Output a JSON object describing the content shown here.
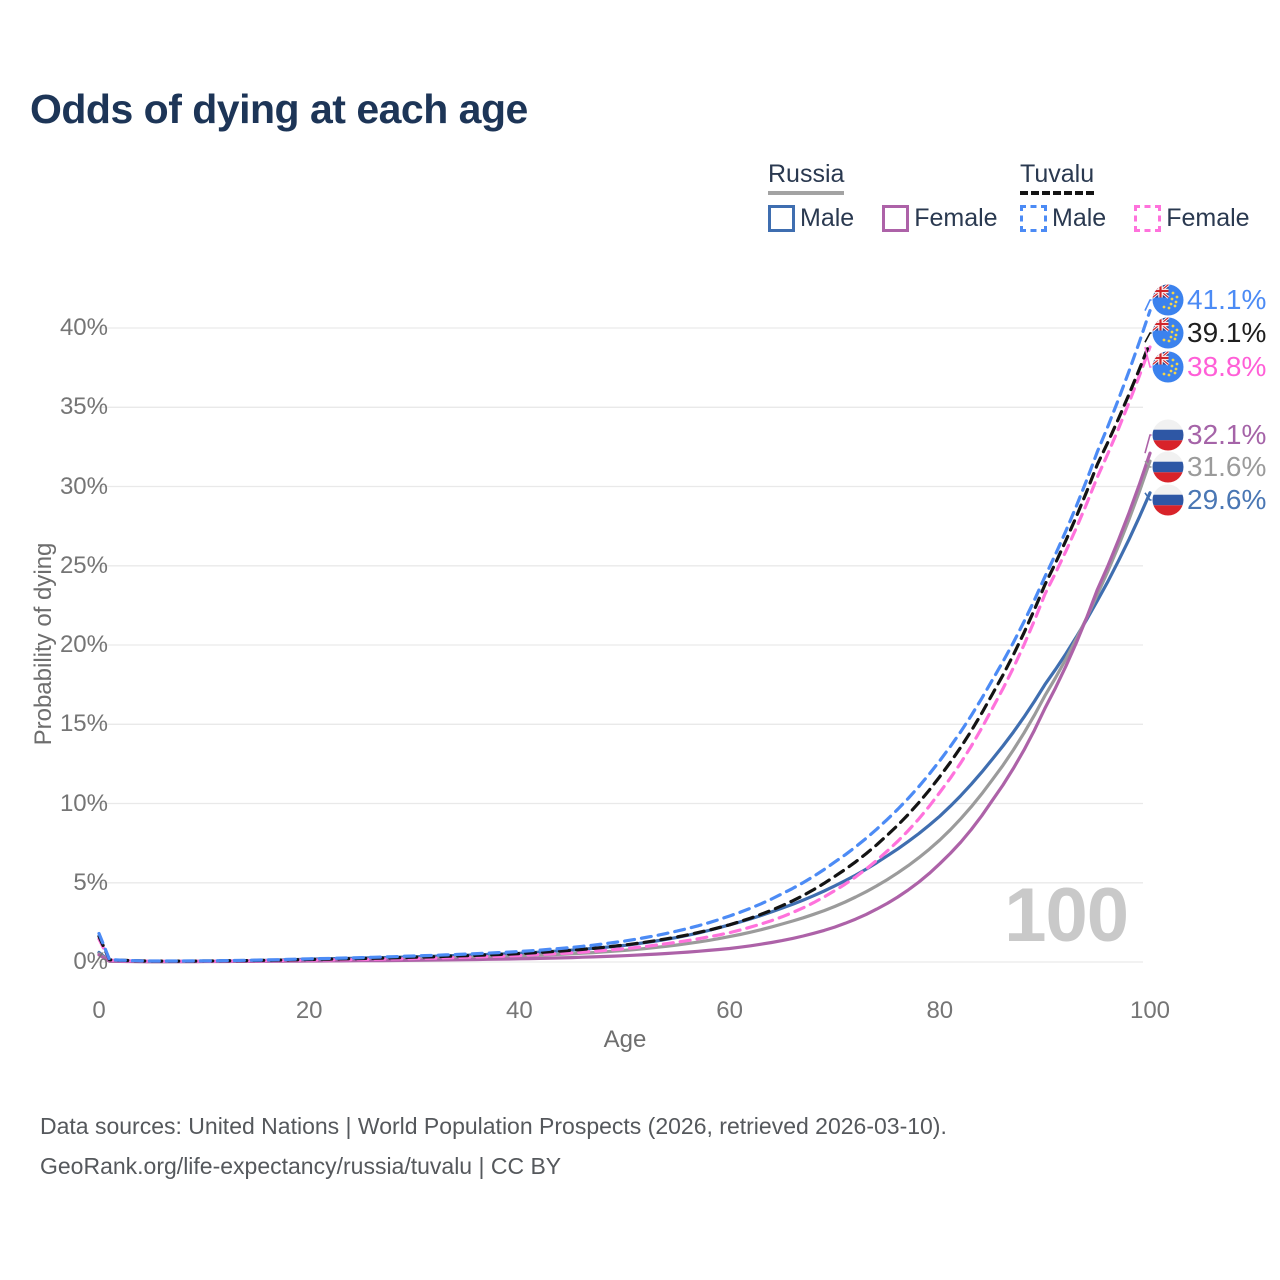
{
  "title": "Odds of dying at each age",
  "legend": {
    "groups": [
      {
        "name": "Russia",
        "rule_style": "solid",
        "rule_color": "#a3a3a3",
        "items": [
          {
            "label": "Male",
            "color": "#3f6eb0",
            "dash": false
          },
          {
            "label": "Female",
            "color": "#ad62a8",
            "dash": false
          }
        ]
      },
      {
        "name": "Tuvalu",
        "rule_style": "dashed",
        "rule_color": "#141414",
        "items": [
          {
            "label": "Male",
            "color": "#4c8bf5",
            "dash": true
          },
          {
            "label": "Female",
            "color": "#ff72dc",
            "dash": true
          }
        ]
      }
    ]
  },
  "chart_data": {
    "type": "line",
    "title": "Odds of dying at each age",
    "x_label": "Age",
    "y_label": "Probability of dying",
    "xlim": [
      0,
      100
    ],
    "ylim": [
      0,
      42
    ],
    "grid": "horizontal",
    "legend_position": "top-right",
    "age_marker": "100",
    "x_ticks": [
      {
        "value": 0,
        "label": "0"
      },
      {
        "value": 20,
        "label": "20"
      },
      {
        "value": 40,
        "label": "40"
      },
      {
        "value": 60,
        "label": "60"
      },
      {
        "value": 80,
        "label": "80"
      },
      {
        "value": 100,
        "label": "100"
      }
    ],
    "y_ticks": [
      {
        "value": 0,
        "label": "0%"
      },
      {
        "value": 5,
        "label": "5%"
      },
      {
        "value": 10,
        "label": "10%"
      },
      {
        "value": 15,
        "label": "15%"
      },
      {
        "value": 20,
        "label": "20%"
      },
      {
        "value": 25,
        "label": "25%"
      },
      {
        "value": 30,
        "label": "30%"
      },
      {
        "value": 35,
        "label": "35%"
      },
      {
        "value": 40,
        "label": "40%"
      }
    ],
    "ages": [
      0,
      1,
      5,
      10,
      15,
      20,
      25,
      30,
      35,
      40,
      45,
      50,
      55,
      60,
      65,
      70,
      75,
      80,
      85,
      90,
      95,
      100
    ],
    "series": [
      {
        "id": "tuvalu-male",
        "country": "Tuvalu",
        "sex": "Male",
        "flag": "tuvalu",
        "color": "#4c8bf5",
        "dash": true,
        "end_label": "41.1%",
        "label_color": "#4c8bf5",
        "values": [
          1.8,
          0.15,
          0.06,
          0.07,
          0.12,
          0.2,
          0.28,
          0.38,
          0.5,
          0.66,
          0.92,
          1.32,
          1.95,
          2.9,
          4.3,
          6.3,
          9.0,
          12.7,
          17.8,
          24.3,
          32.2,
          41.1
        ]
      },
      {
        "id": "tuvalu-both",
        "country": "Tuvalu",
        "sex": "Both sexes",
        "flag": "tuvalu",
        "color": "#141414",
        "dash": true,
        "end_label": "39.1%",
        "label_color": "#1f1f1f",
        "values": [
          1.62,
          0.14,
          0.055,
          0.06,
          0.1,
          0.16,
          0.22,
          0.3,
          0.4,
          0.53,
          0.74,
          1.07,
          1.58,
          2.35,
          3.55,
          5.4,
          8.0,
          11.7,
          16.9,
          23.8,
          31.4,
          39.1
        ]
      },
      {
        "id": "tuvalu-female",
        "country": "Tuvalu",
        "sex": "Female",
        "flag": "tuvalu",
        "color": "#ff72dc",
        "dash": true,
        "end_label": "38.8%",
        "label_color": "#ff5fd7",
        "values": [
          1.45,
          0.12,
          0.05,
          0.05,
          0.08,
          0.12,
          0.16,
          0.22,
          0.3,
          0.41,
          0.58,
          0.84,
          1.25,
          1.85,
          2.85,
          4.5,
          7.0,
          10.7,
          16.0,
          23.2,
          30.6,
          38.8
        ]
      },
      {
        "id": "russia-female",
        "country": "Russia",
        "sex": "Female",
        "flag": "russia",
        "color": "#ad62a8",
        "dash": false,
        "end_label": "32.1%",
        "label_color": "#a564a8",
        "values": [
          0.45,
          0.05,
          0.02,
          0.03,
          0.04,
          0.06,
          0.08,
          0.11,
          0.15,
          0.2,
          0.28,
          0.4,
          0.58,
          0.85,
          1.35,
          2.2,
          3.7,
          6.2,
          10.2,
          16.0,
          23.5,
          32.1
        ]
      },
      {
        "id": "russia-both",
        "country": "Russia",
        "sex": "Both sexes",
        "flag": "russia",
        "color": "#9b9b9b",
        "dash": false,
        "end_label": "31.6%",
        "label_color": "#9b9b9b",
        "values": [
          0.52,
          0.055,
          0.025,
          0.035,
          0.07,
          0.12,
          0.17,
          0.22,
          0.29,
          0.38,
          0.52,
          0.73,
          1.07,
          1.6,
          2.4,
          3.5,
          5.2,
          7.7,
          11.5,
          16.8,
          23.2,
          31.6
        ]
      },
      {
        "id": "russia-male",
        "country": "Russia",
        "sex": "Male",
        "flag": "russia",
        "color": "#3f6eb0",
        "dash": false,
        "end_label": "29.6%",
        "label_color": "#4a77b4",
        "values": [
          0.6,
          0.06,
          0.03,
          0.04,
          0.09,
          0.18,
          0.25,
          0.33,
          0.43,
          0.55,
          0.75,
          1.05,
          1.55,
          2.35,
          3.4,
          4.8,
          6.7,
          9.2,
          12.8,
          17.5,
          22.8,
          29.6
        ]
      }
    ]
  },
  "footer": {
    "line1": "Data sources: United Nations | World Population Prospects (2026, retrieved 2026-03-10).",
    "line2": "GeoRank.org/life-expectancy/russia/tuvalu | CC BY"
  }
}
